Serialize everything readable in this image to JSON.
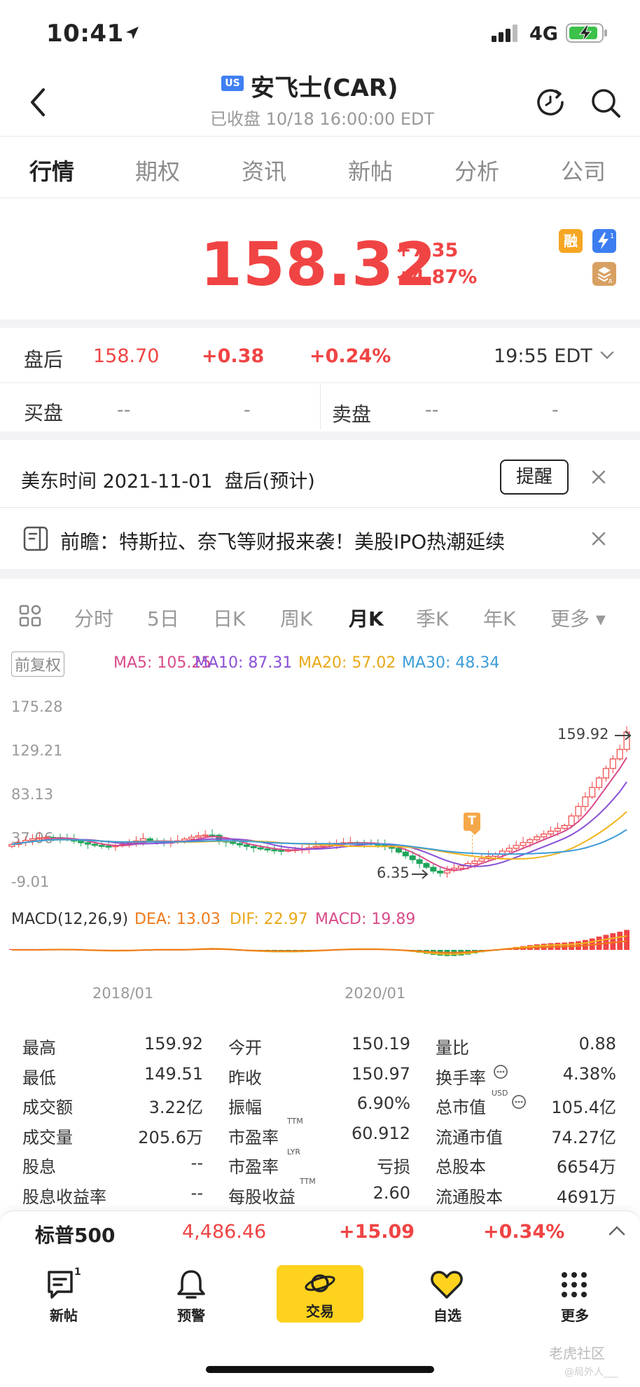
{
  "status_bar": {
    "time": "10:41",
    "network": "4G"
  },
  "header": {
    "market_badge": "US",
    "title": "安飞士(CAR)",
    "subtitle": "已收盘 10/18 16:00:00 EDT"
  },
  "tabs": [
    "行情",
    "期权",
    "资讯",
    "新帖",
    "分析",
    "公司"
  ],
  "quote": {
    "price": "158.32",
    "change": "+7.35",
    "change_pct": "+4.87%",
    "badge_margin": "融"
  },
  "after_hours": {
    "label": "盘后",
    "price": "158.70",
    "change": "+0.38",
    "change_pct": "+0.24%",
    "time": "19:55 EDT"
  },
  "order_book": {
    "bid_label": "买盘",
    "bid_price": "--",
    "bid_size": "-",
    "ask_label": "卖盘",
    "ask_price": "--",
    "ask_size": "-"
  },
  "earnings": {
    "text": "美东时间 2021-11-01  盘后(预计)",
    "remind_label": "提醒"
  },
  "news": {
    "text": "前瞻：特斯拉、奈飞等财报来袭！美股IPO热潮延续"
  },
  "period_tabs": [
    "分时",
    "5日",
    "日K",
    "周K",
    "月K",
    "季K",
    "年K",
    "更多 ▾"
  ],
  "ma_bar": {
    "adjust": "前复权",
    "ma5": "MA5: 105.25",
    "ma10": "MA10: 87.31",
    "ma20": "MA20: 57.02",
    "ma30": "MA30: 48.34"
  },
  "colors": {
    "up": "#f04444",
    "down": "#1ea55a",
    "ma5": "#d84b8a",
    "ma10": "#8a4fd6",
    "ma20": "#f0b41c",
    "ma30": "#3c9cd8",
    "dea": "#f07a1c",
    "dif": "#f0b41c",
    "macd": "#d84b8a"
  },
  "chart_data": {
    "type": "candlestick",
    "y_axis_labels": [
      "175.28",
      "129.21",
      "83.13",
      "37.06",
      "-9.01"
    ],
    "ylim": [
      -9.01,
      175.28
    ],
    "x_axis_labels": [
      "2018/01",
      "2020/01"
    ],
    "max_marker": "159.92",
    "min_marker": "6.35",
    "event_marker": "T",
    "macd_legend": {
      "title": "MACD(12,26,9)",
      "dea": "DEA: 13.03",
      "dif": "DIF: 22.97",
      "macd": "MACD: 19.89"
    }
  },
  "stats": [
    {
      "label": "最高",
      "value": "159.92"
    },
    {
      "label": "今开",
      "value": "150.19"
    },
    {
      "label": "量比",
      "value": "0.88"
    },
    {
      "label": "最低",
      "value": "149.51"
    },
    {
      "label": "昨收",
      "value": "150.97"
    },
    {
      "label": "换手率",
      "value": "4.38%"
    },
    {
      "label": "成交额",
      "value": "3.22亿"
    },
    {
      "label": "振幅",
      "value": "6.90%"
    },
    {
      "label": "总市值",
      "value": "105.4亿"
    },
    {
      "label": "成交量",
      "value": "205.6万"
    },
    {
      "label": "市盈率",
      "value": "60.912"
    },
    {
      "label": "流通市值",
      "value": "74.27亿"
    },
    {
      "label": "股息",
      "value": "--"
    },
    {
      "label": "市盈率",
      "value": "亏损"
    },
    {
      "label": "总股本",
      "value": "6654万"
    },
    {
      "label": "股息收益率",
      "value": "--"
    },
    {
      "label": "每股收益",
      "value": "2.60"
    },
    {
      "label": "流通股本",
      "value": "4691万"
    }
  ],
  "stat_superscripts": {
    "ttm": "TTM",
    "lyr": "LYR",
    "usd": "USD"
  },
  "index_bar": {
    "name": "标普500",
    "value": "4,486.46",
    "change": "+15.09",
    "change_pct": "+0.34%"
  },
  "bottom_nav": {
    "posts": "新帖",
    "posts_badge": "1",
    "alerts": "预警",
    "trade": "交易",
    "watchlist": "自选",
    "more": "更多"
  },
  "watermark": {
    "brand": "老虎社区",
    "user": "@局外人___"
  }
}
